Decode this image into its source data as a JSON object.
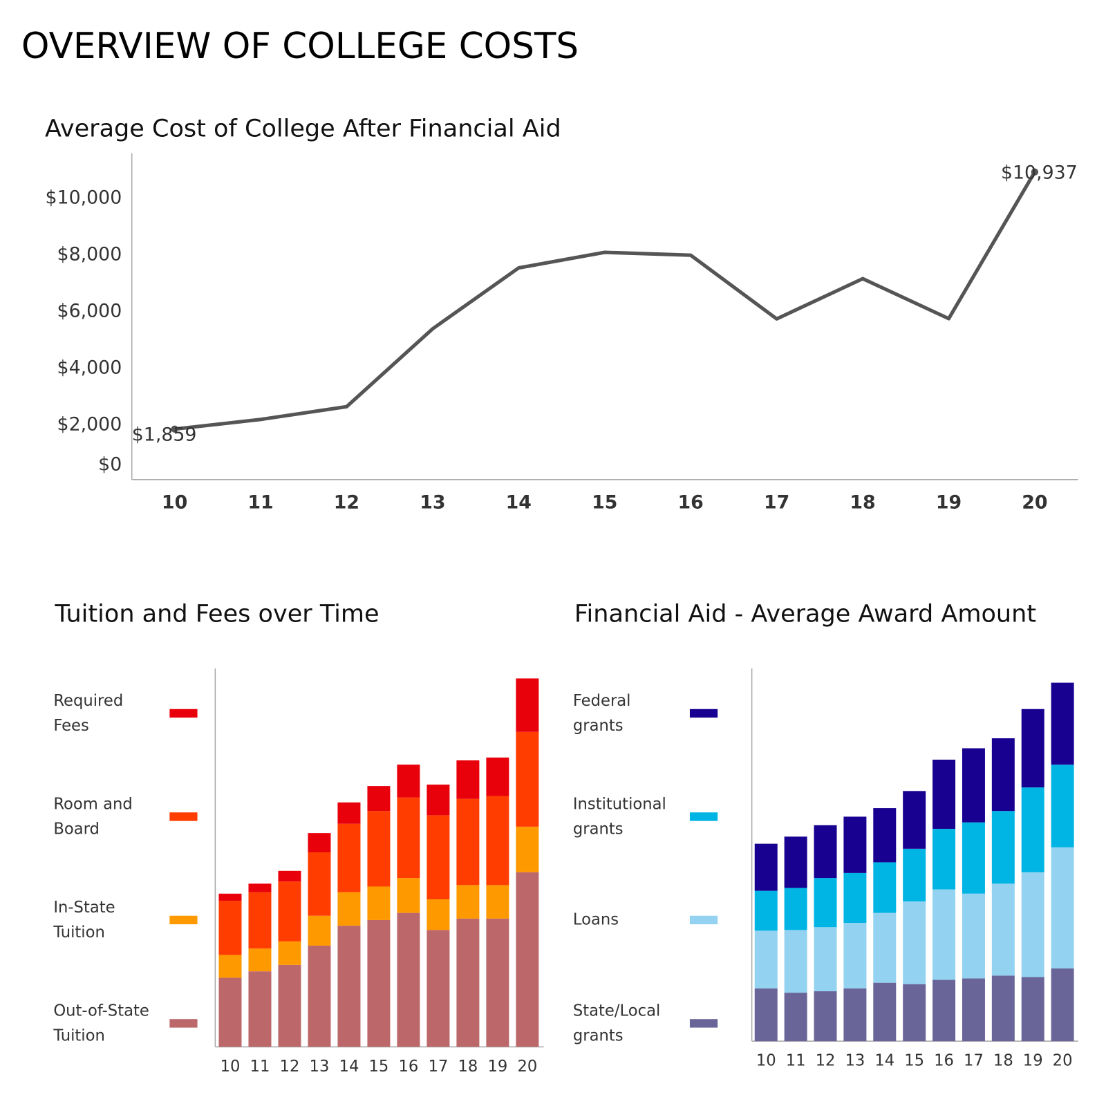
{
  "title": "OVERVIEW OF COLLEGE COSTS",
  "chart_data": [
    {
      "type": "line",
      "title": "Average Cost of College After Financial Aid",
      "categories": [
        "10",
        "11",
        "12",
        "13",
        "14",
        "15",
        "16",
        "17",
        "18",
        "19",
        "20"
      ],
      "values": [
        1859,
        2200,
        2650,
        5400,
        7550,
        8100,
        8000,
        5750,
        7170,
        5760,
        10937
      ],
      "value_labels": [
        "$1,859",
        null,
        null,
        null,
        null,
        null,
        null,
        null,
        null,
        null,
        "$10,937"
      ],
      "color": "#555555",
      "ylim": [
        0,
        11600
      ],
      "yticks": [
        {
          "value": 0,
          "label": "$0"
        },
        {
          "value": 2000,
          "label": "$2,000"
        },
        {
          "value": 4000,
          "label": "$4,000"
        },
        {
          "value": 6000,
          "label": "$6,000"
        },
        {
          "value": 8000,
          "label": "$8,000"
        },
        {
          "value": 10000,
          "label": "$10,000"
        }
      ],
      "grid": false
    },
    {
      "type": "stacked_bar",
      "title": "Tuition and Fees over Time",
      "categories": [
        "10",
        "11",
        "12",
        "13",
        "14",
        "15",
        "16",
        "17",
        "18",
        "19",
        "20"
      ],
      "ylim": [
        0,
        531
      ],
      "legend": "left",
      "series": [
        {
          "name": "Out-of-State Tuition",
          "color": "#bc676a",
          "values": [
            97,
            106,
            115,
            142,
            170,
            178,
            188,
            164,
            180,
            180,
            245
          ]
        },
        {
          "name": "In-State Tuition",
          "color": "#ff9900",
          "values": [
            32,
            32,
            33,
            42,
            47,
            47,
            49,
            43,
            47,
            47,
            64
          ]
        },
        {
          "name": "Room and Board",
          "color": "#ff3d00",
          "values": [
            76,
            79,
            84,
            89,
            96,
            106,
            113,
            118,
            121,
            125,
            133
          ]
        },
        {
          "name": "Required Fees",
          "color": "#e8000b",
          "values": [
            10,
            12,
            15,
            27,
            30,
            35,
            46,
            43,
            54,
            54,
            75
          ]
        }
      ]
    },
    {
      "type": "stacked_bar",
      "title": "Financial Aid - Average Award Amount",
      "categories": [
        "10",
        "11",
        "12",
        "13",
        "14",
        "15",
        "16",
        "17",
        "18",
        "19",
        "20"
      ],
      "ylim": [
        0,
        523
      ],
      "legend": "left",
      "series": [
        {
          "name": "State/Local grants",
          "color": "#6a6599",
          "values": [
            74,
            68,
            70,
            74,
            82,
            80,
            86,
            88,
            92,
            90,
            102
          ]
        },
        {
          "name": "Loans",
          "color": "#93d2f0",
          "values": [
            81,
            88,
            90,
            92,
            98,
            116,
            127,
            119,
            129,
            147,
            170
          ]
        },
        {
          "name": "Institutional grants",
          "color": "#00b4e4",
          "values": [
            56,
            59,
            69,
            70,
            71,
            74,
            85,
            100,
            102,
            119,
            116
          ]
        },
        {
          "name": "Federal grants",
          "color": "#180090",
          "values": [
            66,
            72,
            74,
            79,
            76,
            81,
            97,
            104,
            102,
            110,
            115
          ]
        }
      ]
    }
  ]
}
